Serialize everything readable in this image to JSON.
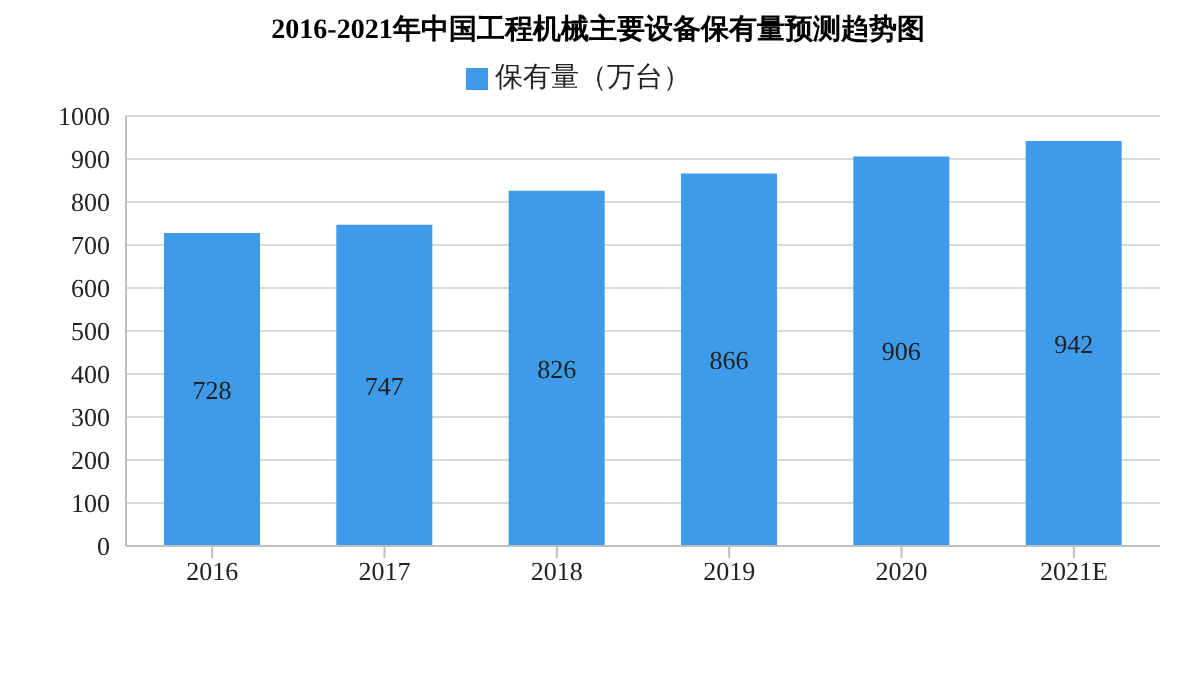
{
  "chart_data": {
    "type": "bar",
    "title": "2016-2021年中国工程机械主要设备保有量预测趋势图",
    "categories": [
      "2016",
      "2017",
      "2018",
      "2019",
      "2020",
      "2021E"
    ],
    "series": [
      {
        "name": "保有量（万台）",
        "color": "#3d9be9",
        "values": [
          728,
          747,
          826,
          866,
          906,
          942
        ]
      }
    ],
    "ylim": [
      0,
      1000
    ],
    "yticks": [
      0,
      100,
      200,
      300,
      400,
      500,
      600,
      700,
      800,
      900,
      1000
    ],
    "grid": "y",
    "legend": "top",
    "data_labels": true
  }
}
